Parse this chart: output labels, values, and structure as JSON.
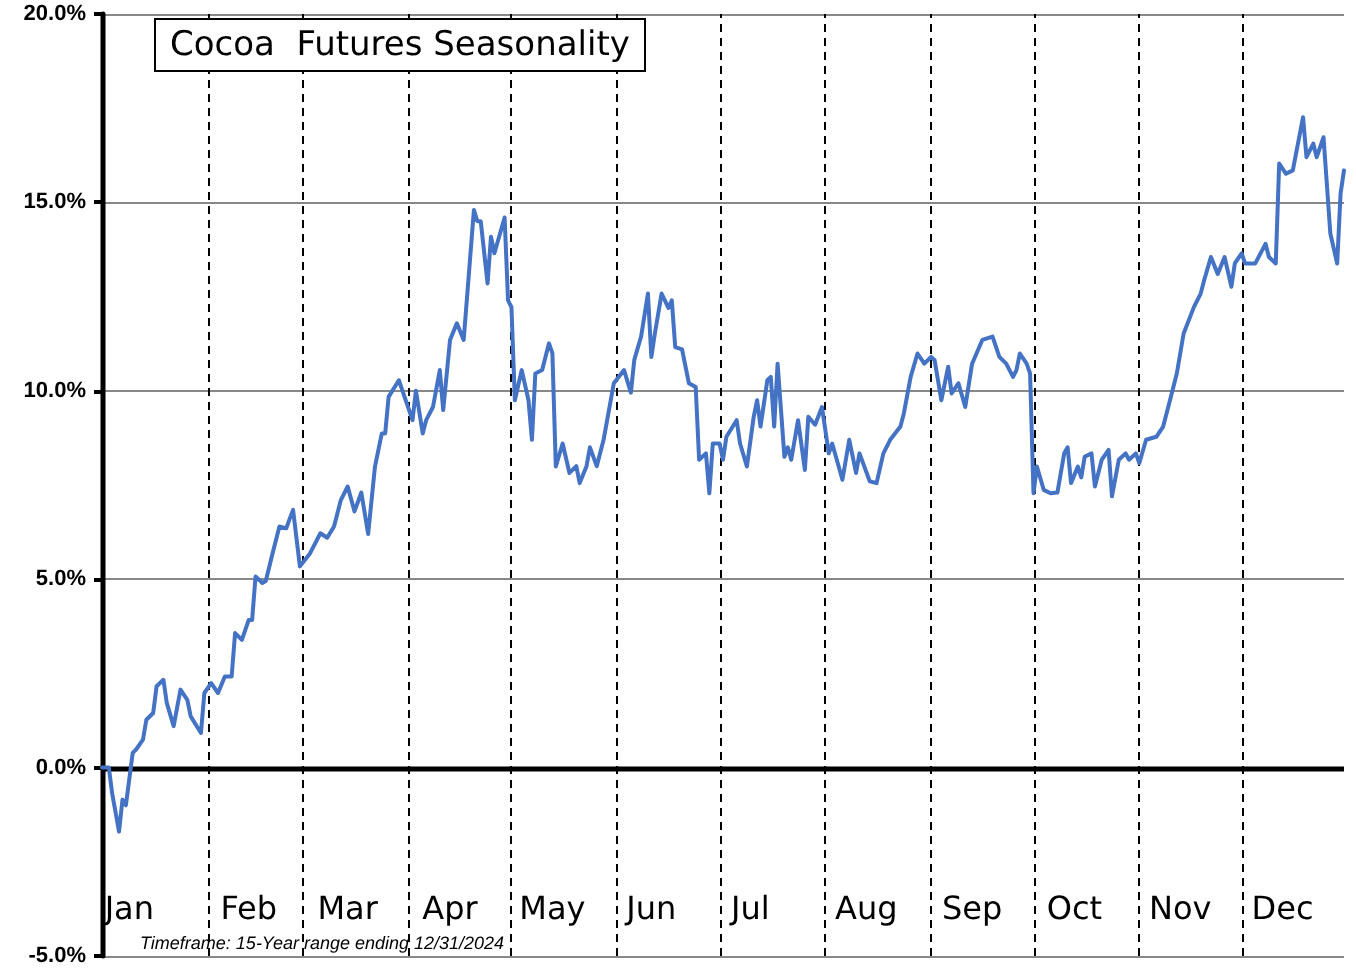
{
  "chart_data": {
    "type": "line",
    "title": "Cocoa  Futures Seasonality",
    "annotations": [
      "Timeframe: 15-Year range ending 12/31/2024"
    ],
    "x": [
      "--01-01",
      "--01-03",
      "--01-04",
      "--01-06",
      "--01-07",
      "--01-08",
      "--01-10",
      "--01-11",
      "--01-13",
      "--01-14",
      "--01-16",
      "--01-17",
      "--01-19",
      "--01-20",
      "--01-22",
      "--01-24",
      "--01-26",
      "--01-27",
      "--01-30",
      "--01-31",
      "--02-02",
      "--02-04",
      "--02-06",
      "--02-08",
      "--02-09",
      "--02-11",
      "--02-13",
      "--02-14",
      "--02-15",
      "--02-17",
      "--02-18",
      "--02-20",
      "--02-22",
      "--02-24",
      "--02-25",
      "--02-26",
      "--02-28",
      "--03-03",
      "--03-06",
      "--03-08",
      "--03-10",
      "--03-12",
      "--03-14",
      "--03-16",
      "--03-18",
      "--03-20",
      "--03-22",
      "--03-24",
      "--03-25",
      "--03-26",
      "--03-29",
      "--03-31",
      "--04-02",
      "--04-03",
      "--04-05",
      "--04-06",
      "--04-08",
      "--04-10",
      "--04-11",
      "--04-13",
      "--04-15",
      "--04-17",
      "--04-20",
      "--04-21",
      "--04-22",
      "--04-24",
      "--04-25",
      "--04-26",
      "--04-29",
      "--04-30",
      "--05-01",
      "--05-02",
      "--05-04",
      "--05-06",
      "--05-07",
      "--05-08",
      "--05-10",
      "--05-12",
      "--05-13",
      "--05-14",
      "--05-16",
      "--05-18",
      "--05-20",
      "--05-21",
      "--05-23",
      "--05-24",
      "--05-26",
      "--05-28",
      "--05-31",
      "--06-03",
      "--06-05",
      "--06-06",
      "--06-08",
      "--06-10",
      "--06-11",
      "--06-12",
      "--06-14",
      "--06-16",
      "--06-17",
      "--06-18",
      "--06-20",
      "--06-22",
      "--06-24",
      "--06-25",
      "--06-27",
      "--06-28",
      "--06-29",
      "--07-01",
      "--07-02",
      "--07-03",
      "--07-06",
      "--07-07",
      "--07-09",
      "--07-11",
      "--07-12",
      "--07-13",
      "--07-15",
      "--07-16",
      "--07-17",
      "--07-18",
      "--07-20",
      "--07-21",
      "--07-22",
      "--07-24",
      "--07-26",
      "--07-27",
      "--07-29",
      "--07-31",
      "--08-02",
      "--08-03",
      "--08-06",
      "--08-08",
      "--08-10",
      "--08-11",
      "--08-14",
      "--08-16",
      "--08-18",
      "--08-20",
      "--08-23",
      "--08-24",
      "--08-26",
      "--08-28",
      "--08-30",
      "--09-01",
      "--09-02",
      "--09-04",
      "--09-06",
      "--09-07",
      "--09-09",
      "--09-11",
      "--09-13",
      "--09-16",
      "--09-19",
      "--09-21",
      "--09-23",
      "--09-25",
      "--09-26",
      "--09-27",
      "--09-29",
      "--09-30",
      "--10-01",
      "--10-02",
      "--10-04",
      "--10-06",
      "--10-08",
      "--10-10",
      "--10-11",
      "--10-12",
      "--10-14",
      "--10-15",
      "--10-16",
      "--10-18",
      "--10-19",
      "--10-21",
      "--10-23",
      "--10-24",
      "--10-26",
      "--10-28",
      "--10-29",
      "--10-31",
      "--11-01",
      "--11-03",
      "--11-06",
      "--11-08",
      "--11-10",
      "--11-12",
      "--11-14",
      "--11-17",
      "--11-19",
      "--11-20",
      "--11-22",
      "--11-24",
      "--11-26",
      "--11-28",
      "--11-29",
      "--12-01",
      "--12-02",
      "--12-05",
      "--12-08",
      "--12-09",
      "--12-11",
      "--12-12",
      "--12-14",
      "--12-16",
      "--12-19",
      "--12-20",
      "--12-22",
      "--12-23",
      "--12-25",
      "--12-27",
      "--12-29",
      "--12-30",
      "--12-31"
    ],
    "values": [
      0,
      0,
      -0.7,
      -1.7,
      -0.85,
      -1,
      0.39,
      0.48,
      0.74,
      1.27,
      1.45,
      2.16,
      2.33,
      1.71,
      1.1,
      2.07,
      1.8,
      1.36,
      0.92,
      1.98,
      2.24,
      1.98,
      2.42,
      2.42,
      3.57,
      3.39,
      3.92,
      3.92,
      5.07,
      4.9,
      4.95,
      5.69,
      6.4,
      6.35,
      6.6,
      6.84,
      5.34,
      5.69,
      6.22,
      6.1,
      6.4,
      7.1,
      7.46,
      6.8,
      7.3,
      6.2,
      7.99,
      8.87,
      8.87,
      9.84,
      10.28,
      9.75,
      9.22,
      10,
      8.87,
      9.22,
      9.57,
      10.55,
      9.49,
      11.35,
      11.79,
      11.35,
      14.8,
      14.5,
      14.5,
      12.85,
      14.09,
      13.65,
      14.6,
      12.4,
      12.22,
      9.75,
      10.55,
      9.75,
      8.7,
      10.46,
      10.55,
      11.26,
      11,
      7.99,
      8.6,
      7.82,
      8,
      7.55,
      8,
      8.5,
      8,
      8.7,
      10.2,
      10.55,
      9.95,
      10.82,
      11.44,
      12.58,
      10.9,
      11.5,
      12.58,
      12.2,
      12.4,
      11.16,
      11.1,
      10.2,
      10.1,
      8.17,
      8.34,
      7.28,
      8.6,
      8.6,
      8.17,
      8.78,
      9.22,
      8.6,
      7.99,
      9.31,
      9.75,
      9.05,
      10.28,
      10.37,
      9.05,
      10.72,
      8.25,
      8.5,
      8.17,
      9.22,
      7.9,
      9.31,
      9.1,
      9.57,
      8.34,
      8.6,
      7.64,
      8.7,
      7.82,
      8.34,
      7.6,
      7.55,
      8.34,
      8.7,
      9.05,
      9.4,
      10.37,
      10.99,
      10.72,
      10.9,
      10.82,
      9.75,
      10.64,
      9.93,
      10.2,
      9.57,
      10.72,
      11.35,
      11.44,
      10.9,
      10.72,
      10.37,
      10.55,
      10.99,
      10.72,
      10.46,
      7.28,
      7.99,
      7.37,
      7.28,
      7.3,
      8.34,
      8.5,
      7.55,
      7.99,
      7.7,
      8.25,
      8.34,
      7.46,
      8.17,
      8.43,
      7.2,
      8.17,
      8.34,
      8.17,
      8.34,
      8.08,
      8.7,
      8.78,
      9.05,
      9.75,
      10.46,
      11.52,
      12.22,
      12.58,
      12.93,
      13.55,
      13.1,
      13.55,
      12.76,
      13.38,
      13.65,
      13.38,
      13.38,
      13.9,
      13.55,
      13.38,
      16.03,
      15.76,
      15.85,
      17.26,
      16.2,
      16.56,
      16.2,
      16.73,
      14.17,
      13.38,
      15.24,
      15.85
    ],
    "color": "#4472c4",
    "marker": "none",
    "line_style": "solid",
    "grid": "y",
    "xlim": [
      "--01-01",
      "--12-31"
    ],
    "xticks": [
      {
        "value": "--01-09",
        "label": "Jan"
      },
      {
        "value": "--02-13",
        "label": "Feb"
      },
      {
        "value": "--03-14",
        "label": "Mar"
      },
      {
        "value": "--04-13",
        "label": "Apr"
      },
      {
        "value": "--05-13",
        "label": "May"
      },
      {
        "value": "--06-11",
        "label": "Jun"
      },
      {
        "value": "--07-10",
        "label": "Jul"
      },
      {
        "value": "--08-13",
        "label": "Aug"
      },
      {
        "value": "--09-13",
        "label": "Sep"
      },
      {
        "value": "--10-13",
        "label": "Oct"
      },
      {
        "value": "--11-13",
        "label": "Nov"
      },
      {
        "value": "--12-13",
        "label": "Dec"
      }
    ],
    "ylim": [
      -5,
      20
    ],
    "yticks": [
      {
        "value": -5,
        "label": "-5.0%"
      },
      {
        "value": 0,
        "label": "0.0%"
      },
      {
        "value": 5,
        "label": "5.0%"
      },
      {
        "value": 10,
        "label": "10.0%"
      },
      {
        "value": 15,
        "label": "15.0%"
      },
      {
        "value": 20,
        "label": "20.0%"
      }
    ],
    "ref_lines": [
      {
        "axis": "y",
        "value": 0,
        "label": null,
        "color": "#000000",
        "line_style": "solid"
      },
      {
        "axis": "x",
        "value": "--02-01",
        "label": null,
        "color": "#000000",
        "line_style": "dashed"
      },
      {
        "axis": "x",
        "value": "--03-01",
        "label": null,
        "color": "#000000",
        "line_style": "dashed"
      },
      {
        "axis": "x",
        "value": "--04-01",
        "label": null,
        "color": "#000000",
        "line_style": "dashed"
      },
      {
        "axis": "x",
        "value": "--05-01",
        "label": null,
        "color": "#000000",
        "line_style": "dashed"
      },
      {
        "axis": "x",
        "value": "--06-01",
        "label": null,
        "color": "#000000",
        "line_style": "dashed"
      },
      {
        "axis": "x",
        "value": "--07-01",
        "label": null,
        "color": "#000000",
        "line_style": "dashed"
      },
      {
        "axis": "x",
        "value": "--08-01",
        "label": null,
        "color": "#000000",
        "line_style": "dashed"
      },
      {
        "axis": "x",
        "value": "--09-01",
        "label": null,
        "color": "#000000",
        "line_style": "dashed"
      },
      {
        "axis": "x",
        "value": "--10-01",
        "label": null,
        "color": "#000000",
        "line_style": "dashed"
      },
      {
        "axis": "x",
        "value": "--11-01",
        "label": null,
        "color": "#000000",
        "line_style": "dashed"
      },
      {
        "axis": "x",
        "value": "--12-01",
        "label": null,
        "color": "#000000",
        "line_style": "dashed"
      }
    ]
  }
}
